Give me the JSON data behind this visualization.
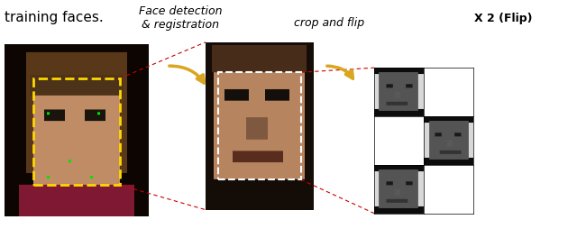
{
  "title": "",
  "fig_width": 6.4,
  "fig_height": 2.64,
  "dpi": 100,
  "bg_color": "#ffffff",
  "text_face_detect": "Face detection\n& registration",
  "text_crop_flip": "crop and flip",
  "text_x2": "X 2 (Flip)",
  "arrow_color": "#DAA520",
  "dashed_line_color": "#cc0000",
  "yellow_rect_color": "#FFD700",
  "white_dashed_color": "#ffffff"
}
